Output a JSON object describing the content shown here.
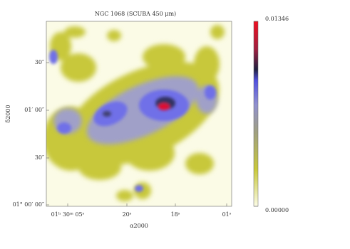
{
  "chart_data": {
    "type": "image",
    "title": "NGC 1068 (SCUBA 450 μm)",
    "xlabel": "α2000",
    "ylabel": "δ2000",
    "xticks": [
      "01ʰ 30ᵐ 05ˢ",
      "20ˢ",
      "18ˢ",
      "01ˢ"
    ],
    "yticks": [
      "30″",
      "01′ 00″",
      "30″",
      "01° 00′ 00″"
    ],
    "clim": [
      0,
      0.01346
    ],
    "cticks": [
      {
        "value": 0.01346,
        "label": "0.01346"
      },
      {
        "value": 0,
        "label": "0.00000"
      }
    ]
  }
}
